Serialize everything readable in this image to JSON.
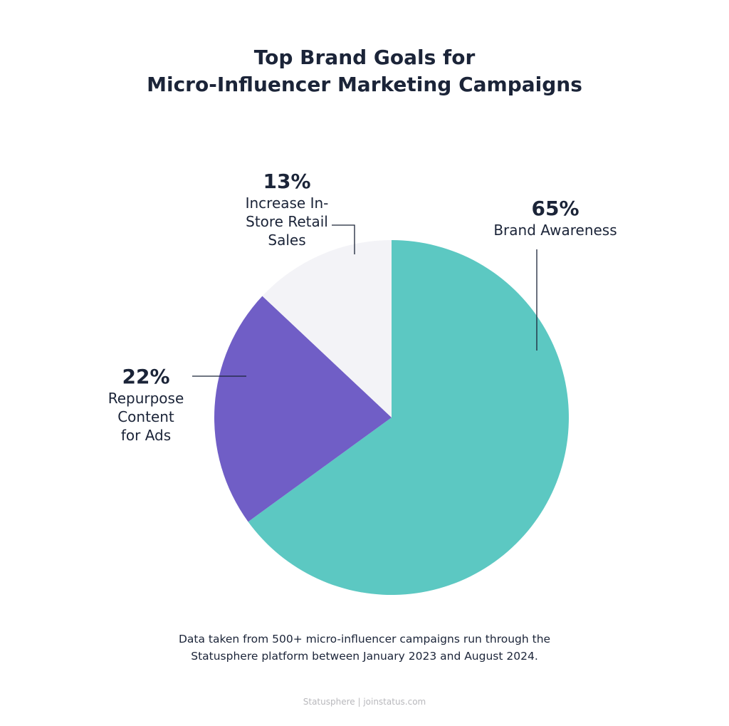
{
  "chart_data": {
    "type": "pie",
    "title_lines": [
      "Top Brand Goals for",
      "Micro-Influencer Marketing Campaigns"
    ],
    "slices": [
      {
        "label": "Brand Awareness",
        "value": 65,
        "value_label": "65%",
        "color": "#5cc8c2"
      },
      {
        "label_lines": [
          "Repurpose",
          "Content",
          "for Ads"
        ],
        "label": "Repurpose Content for Ads",
        "value": 22,
        "value_label": "22%",
        "color": "#705ec6"
      },
      {
        "label_lines": [
          "Increase In-",
          "Store Retail",
          "Sales"
        ],
        "label": "Increase In-Store Retail Sales",
        "value": 13,
        "value_label": "13%",
        "color": "#f3f3f7"
      }
    ],
    "start": "top",
    "direction": "clockwise"
  },
  "note_lines": [
    "Data taken from 500+ micro-influencer campaigns run through the",
    "Statusphere platform between January 2023 and August 2024."
  ],
  "footer": "Statusphere | joinstatus.com"
}
